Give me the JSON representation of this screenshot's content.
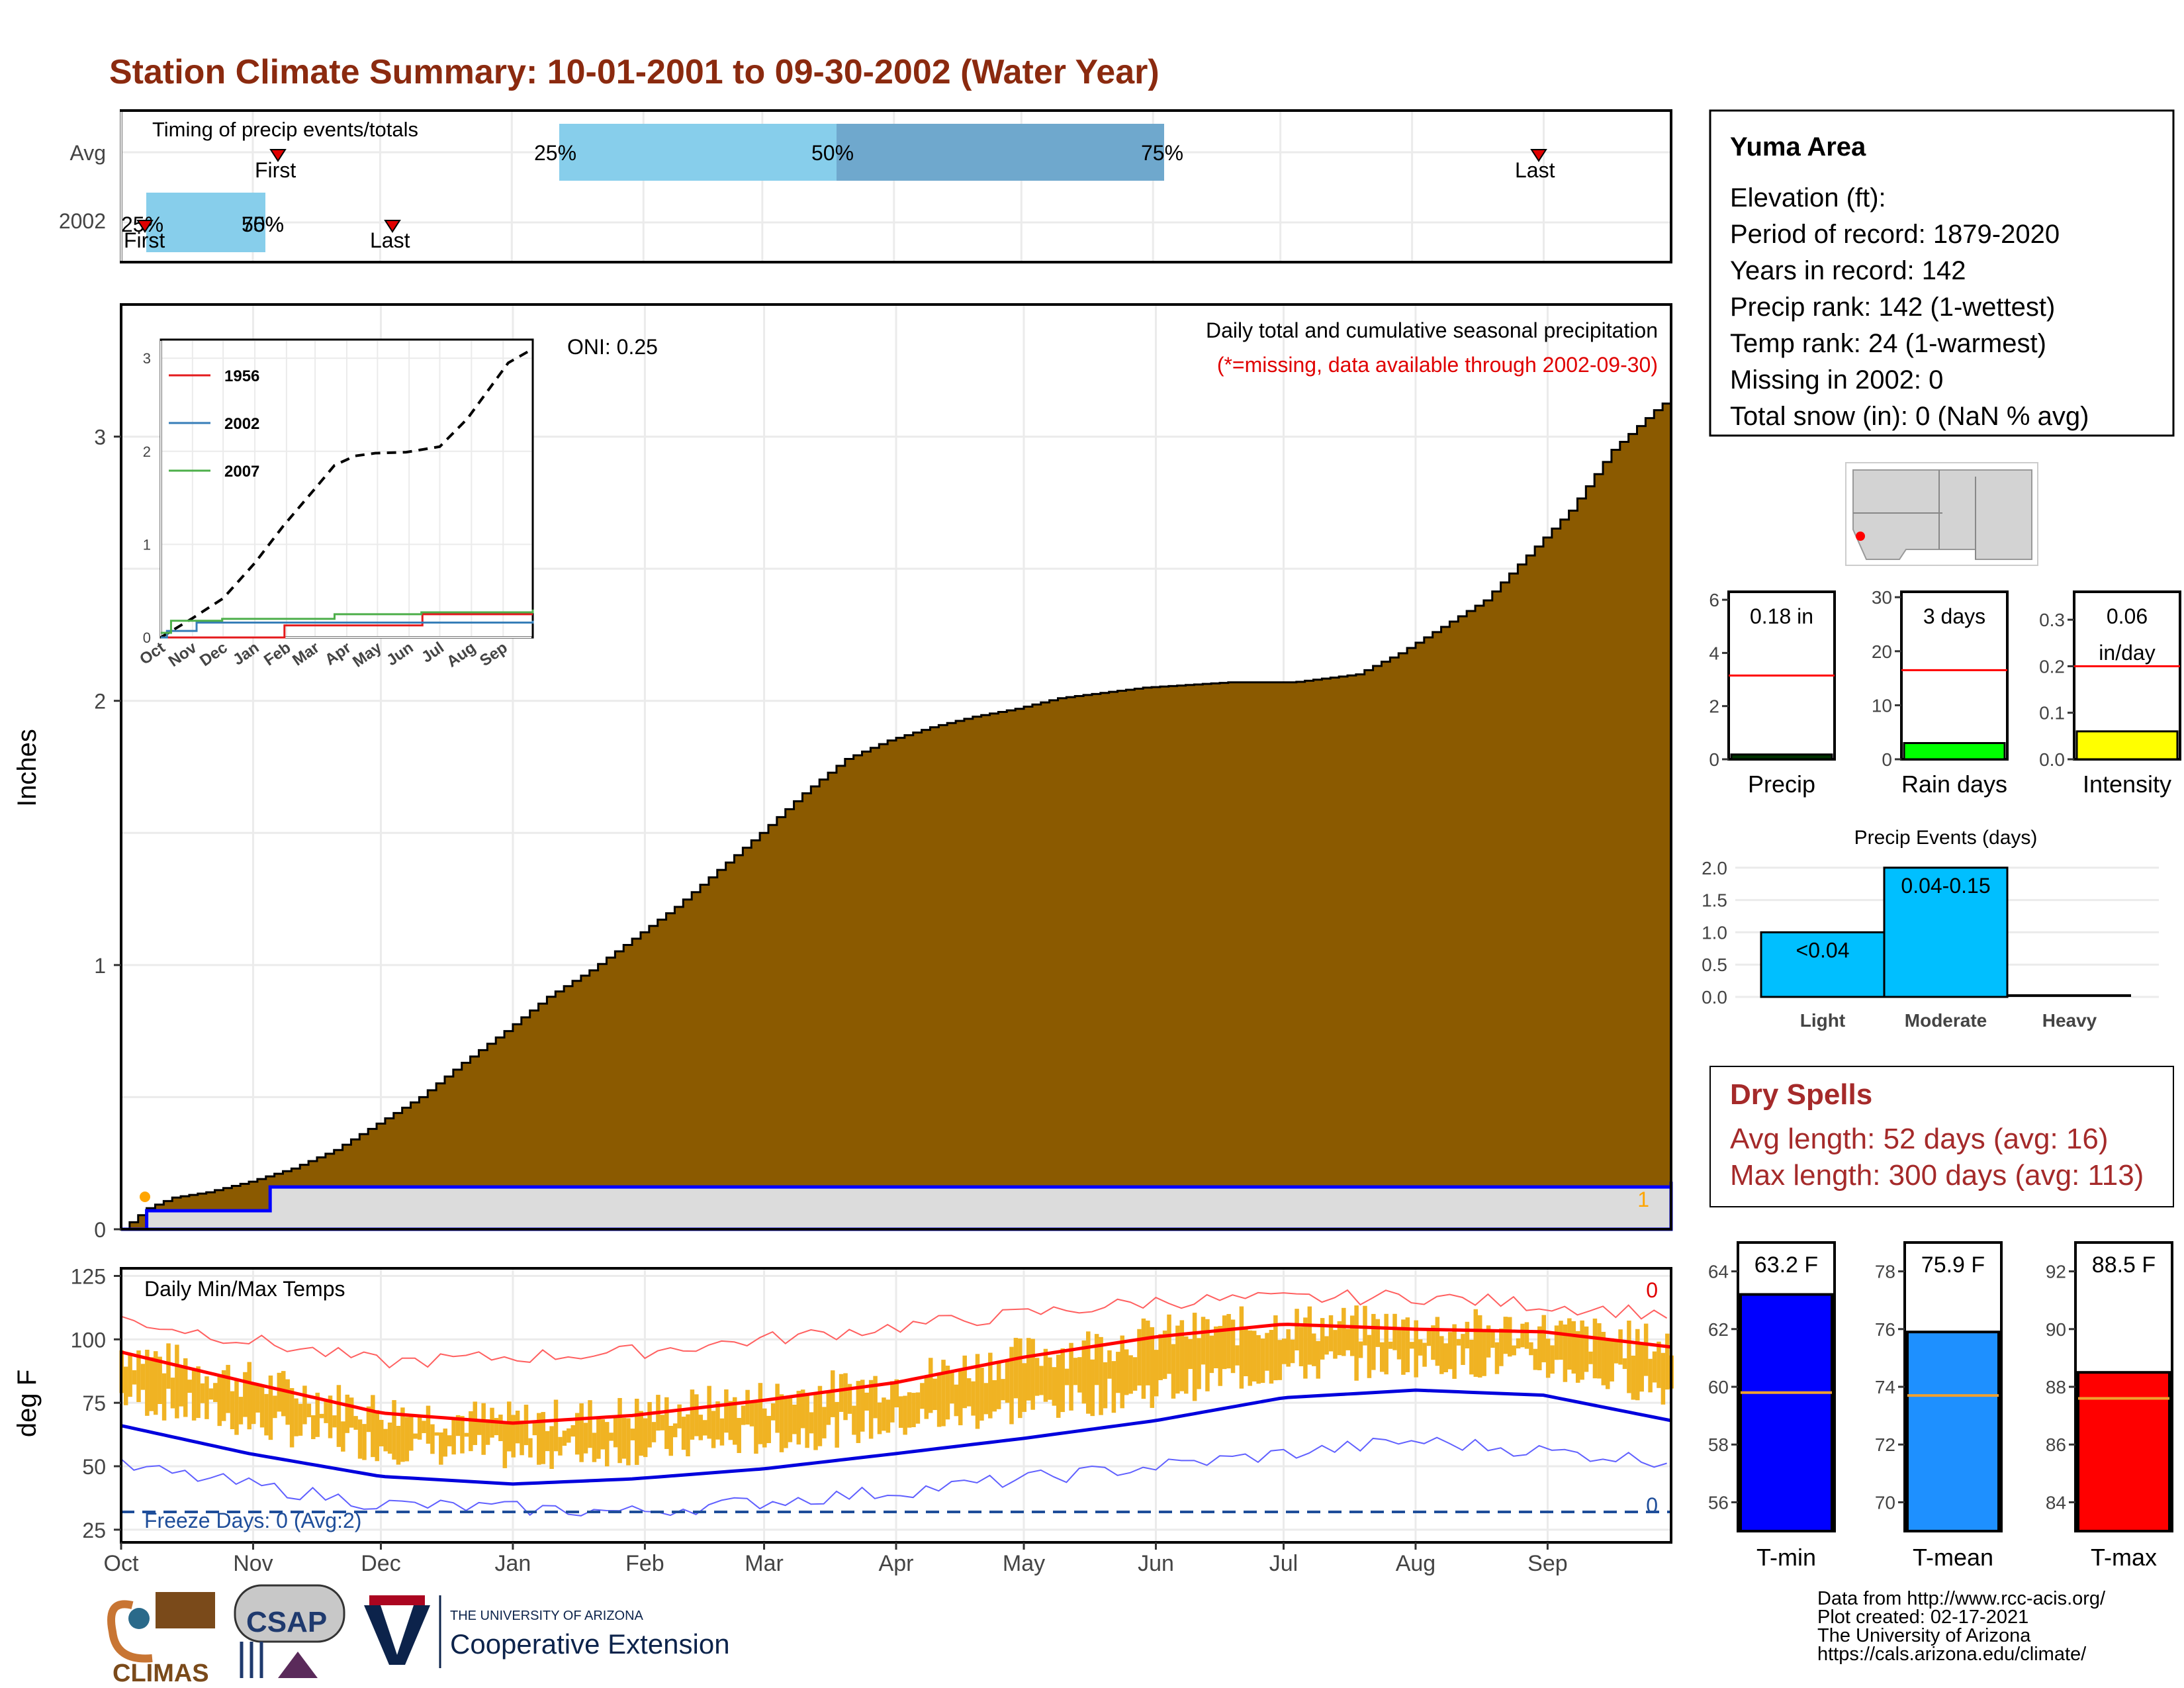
{
  "page": {
    "title": "Station Climate Summary: 10-01-2001 to 09-30-2002 (Water Year)",
    "colors": {
      "title": "#8b2a0f",
      "dry_spells": "#a52a2a",
      "precip_fill": "#8b5a00",
      "normal_fill": "#dcdcdc",
      "normal_line": "#0000ff"
    }
  },
  "station": {
    "name": "Yuma Area",
    "lines": [
      "Elevation (ft):",
      "Period of record: 1879-2020",
      "Years in record: 142",
      "Precip rank: 142 (1-wettest)",
      "Temp rank: 24 (1-warmest)",
      "Missing in 2002: 0",
      "Total snow (in): 0 (NaN % avg)"
    ]
  },
  "timing": {
    "label": "Timing of precip events/totals",
    "rows": [
      "Avg",
      "2002"
    ],
    "avg": {
      "q25": "25%",
      "q50": "50%",
      "q75": "75%",
      "first": "First",
      "last": "Last"
    },
    "y2002": {
      "q25": "25%",
      "q50": "50%",
      "q75": "75%",
      "first": "First",
      "last": "Last"
    }
  },
  "precip_panel": {
    "ylabel": "Inches",
    "oni": "ONI: 0.25",
    "subtitle": "Daily total and cumulative seasonal precipitation",
    "missing_note": "(*=missing, data available through 2002-09-30)",
    "y_ticks": [
      "0",
      "1",
      "2",
      "3"
    ],
    "missing_count": "1"
  },
  "inset": {
    "y_ticks": [
      "0",
      "1",
      "2",
      "3"
    ],
    "x_ticks": [
      "Oct",
      "Nov",
      "Dec",
      "Jan",
      "Feb",
      "Mar",
      "Apr",
      "May",
      "Jun",
      "Jul",
      "Aug",
      "Sep"
    ],
    "legend": [
      {
        "name": "1956",
        "color": "#e41a1c"
      },
      {
        "name": "2002",
        "color": "#377eb8"
      },
      {
        "name": "2007",
        "color": "#4daf4a"
      }
    ]
  },
  "temp_panel": {
    "ylabel": "deg F",
    "label": "Daily Min/Max Temps",
    "y_ticks": [
      "25",
      "50",
      "75",
      "100",
      "125"
    ],
    "freeze": "Freeze Days: 0 (Avg:2)",
    "hot_days": "0",
    "freeze_count": "0",
    "months": [
      "Oct",
      "Nov",
      "Dec",
      "Jan",
      "Feb",
      "Mar",
      "Apr",
      "May",
      "Jun",
      "Jul",
      "Aug",
      "Sep"
    ]
  },
  "mini": {
    "precip": {
      "label": "Precip",
      "value": "0.18 in",
      "ticks": [
        "0",
        "2",
        "4",
        "6"
      ]
    },
    "raindays": {
      "label": "Rain days",
      "value": "3 days",
      "ticks": [
        "0",
        "10",
        "20",
        "30"
      ]
    },
    "intensity": {
      "label": "Intensity",
      "value1": "0.06",
      "value2": "in/day",
      "ticks": [
        "0.0",
        "0.1",
        "0.2",
        "0.3"
      ]
    }
  },
  "events": {
    "title": "Precip Events (days)",
    "ticks": [
      "0.0",
      "0.5",
      "1.0",
      "1.5",
      "2.0"
    ],
    "cats": [
      "Light",
      "Moderate",
      "Heavy"
    ],
    "labels": [
      "<0.04",
      "0.04-0.15",
      ""
    ]
  },
  "dry": {
    "title": "Dry Spells",
    "line1": "Avg length: 52 days (avg: 16)",
    "line2": "Max length: 300 days (avg: 113)"
  },
  "tbars": {
    "tmin": {
      "label": "T-min",
      "value": "63.2 F",
      "ticks": [
        "56",
        "58",
        "60",
        "62",
        "64"
      ]
    },
    "tmean": {
      "label": "T-mean",
      "value": "75.9 F",
      "ticks": [
        "70",
        "72",
        "74",
        "76",
        "78"
      ]
    },
    "tmax": {
      "label": "T-max",
      "value": "88.5 F",
      "ticks": [
        "84",
        "86",
        "88",
        "90",
        "92"
      ]
    }
  },
  "footer": {
    "lines": [
      "Data from http://www.rcc-acis.org/",
      "Plot created: 02-17-2021",
      "The University of Arizona",
      "https://cals.arizona.edu/climate/"
    ],
    "logo_climas": "CLIMAS",
    "logo_csap": "CSAP",
    "ua_small": "THE UNIVERSITY OF ARIZONA",
    "ua_big": "Cooperative Extension"
  },
  "chart_data": [
    {
      "type": "area",
      "title": "Daily total and cumulative seasonal precipitation",
      "ylabel": "Inches",
      "ylim": [
        0,
        3.5
      ],
      "months": [
        "Oct",
        "Nov",
        "Dec",
        "Jan",
        "Feb",
        "Mar",
        "Apr",
        "May",
        "Jun",
        "Jul",
        "Aug",
        "Sep"
      ],
      "series": [
        {
          "name": "cumulative normal precipitation",
          "x_day": [
            0,
            6,
            12,
            20,
            30,
            40,
            50,
            60,
            70,
            80,
            90,
            100,
            110,
            120,
            130,
            140,
            150,
            160,
            170,
            180,
            190,
            200,
            210,
            220,
            230,
            240,
            250,
            260,
            270,
            275,
            280,
            290,
            300,
            310,
            320,
            330,
            340,
            350,
            360,
            364
          ],
          "values": [
            0,
            0.08,
            0.12,
            0.14,
            0.18,
            0.23,
            0.3,
            0.4,
            0.5,
            0.63,
            0.75,
            0.88,
            0.98,
            1.1,
            1.22,
            1.36,
            1.5,
            1.65,
            1.78,
            1.85,
            1.9,
            1.94,
            1.97,
            2.01,
            2.03,
            2.05,
            2.06,
            2.07,
            2.07,
            2.07,
            2.08,
            2.1,
            2.18,
            2.28,
            2.38,
            2.55,
            2.72,
            2.95,
            3.1,
            3.15
          ]
        },
        {
          "name": "cumulative 2002 precipitation",
          "x_day": [
            0,
            5,
            6,
            34,
            35,
            364
          ],
          "values": [
            0,
            0,
            0.07,
            0.07,
            0.16,
            0.18
          ]
        }
      ]
    },
    {
      "type": "line",
      "title": "inset",
      "ylim": [
        0,
        3.2
      ],
      "series": [
        {
          "name": "normal",
          "style": "dashed",
          "x_day": [
            0,
            30,
            61,
            92,
            120,
            151,
            170,
            190,
            210,
            240,
            273,
            300,
            320,
            340,
            364
          ],
          "values": [
            0,
            0.2,
            0.42,
            0.8,
            1.2,
            1.6,
            1.85,
            1.95,
            1.98,
            1.99,
            2.05,
            2.35,
            2.65,
            2.95,
            3.1
          ]
        },
        {
          "name": "1956",
          "x_day": [
            0,
            120,
            121,
            255,
            256,
            364
          ],
          "values": [
            0,
            0,
            0.13,
            0.13,
            0.25,
            0.25
          ]
        },
        {
          "name": "2002",
          "x_day": [
            0,
            6,
            35,
            364
          ],
          "values": [
            0,
            0.07,
            0.16,
            0.18
          ]
        },
        {
          "name": "2007",
          "x_day": [
            0,
            10,
            60,
            140,
            170,
            255,
            364
          ],
          "values": [
            0.05,
            0.18,
            0.2,
            0.2,
            0.25,
            0.27,
            0.3
          ]
        }
      ]
    },
    {
      "type": "line",
      "title": "Daily Min/Max Temps",
      "ylabel": "deg F",
      "ylim": [
        20,
        128
      ],
      "series": [
        {
          "name": "normal max",
          "x_day": [
            0,
            30,
            61,
            92,
            120,
            151,
            182,
            212,
            243,
            273,
            304,
            334,
            364
          ],
          "values": [
            95,
            83,
            71,
            67,
            70,
            76,
            83,
            93,
            101,
            106,
            104,
            103,
            97
          ]
        },
        {
          "name": "normal min",
          "x_day": [
            0,
            30,
            61,
            92,
            120,
            151,
            182,
            212,
            243,
            273,
            304,
            334,
            364
          ],
          "values": [
            66,
            55,
            46,
            43,
            45,
            49,
            55,
            61,
            68,
            77,
            80,
            78,
            68
          ]
        },
        {
          "name": "record max",
          "x_day": [
            0,
            61,
            120,
            182,
            243,
            304,
            364
          ],
          "values": [
            108,
            91,
            95,
            105,
            115,
            117,
            110
          ]
        },
        {
          "name": "record min",
          "x_day": [
            0,
            61,
            120,
            182,
            243,
            304,
            364
          ],
          "values": [
            50,
            35,
            32,
            40,
            50,
            60,
            52
          ]
        }
      ],
      "freeze_line": 32
    },
    {
      "type": "bar",
      "title": "Precip",
      "values": [
        0.18
      ],
      "normal": 3.15,
      "ylim": [
        0,
        6.3
      ]
    },
    {
      "type": "bar",
      "title": "Rain days",
      "values": [
        3
      ],
      "normal": 16.5,
      "ylim": [
        0,
        31
      ]
    },
    {
      "type": "bar",
      "title": "Intensity",
      "values": [
        0.06
      ],
      "normal": 0.2,
      "ylim": [
        0,
        0.36
      ]
    },
    {
      "type": "bar",
      "title": "Precip Events (days)",
      "categories": [
        "Light",
        "Moderate",
        "Heavy"
      ],
      "values": [
        1,
        2,
        0
      ],
      "ylim": [
        0,
        2.1
      ]
    },
    {
      "type": "bar",
      "title": "Temperature averages",
      "categories": [
        "T-min",
        "T-mean",
        "T-max"
      ],
      "values": [
        63.2,
        75.9,
        88.5
      ],
      "normals": [
        59.8,
        73.7,
        87.6
      ],
      "ylims": [
        [
          55,
          65
        ],
        [
          69,
          79
        ],
        [
          83,
          93
        ]
      ]
    }
  ]
}
